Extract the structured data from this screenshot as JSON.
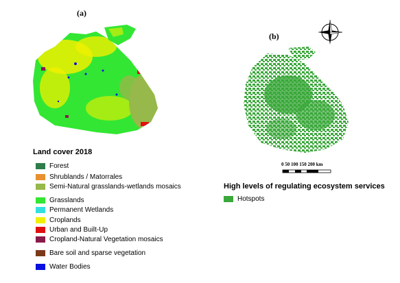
{
  "panel_a_label": "(a)",
  "panel_b_label": "(b)",
  "legend_a": {
    "title": "Land cover 2018",
    "items": [
      {
        "label": "Forest",
        "color": "#2e7d4a"
      },
      {
        "label": "Shrublands / Matorrales",
        "color": "#e8902e"
      },
      {
        "label": "Semi-Natural grasslands-wetlands mosaics",
        "color": "#97b84a"
      },
      {
        "label": "Grasslands",
        "color": "#33e633"
      },
      {
        "label": "Permanent Wetlands",
        "color": "#33e0e0"
      },
      {
        "label": "Croplands",
        "color": "#f0f000"
      },
      {
        "label": "Urban and Built-Up",
        "color": "#e01010"
      },
      {
        "label": "Cropland-Natural Vegetation mosaics",
        "color": "#8a1a4a"
      },
      {
        "label": "Bare soil and sparse vegetation",
        "color": "#7a3a1a"
      },
      {
        "label": "Water Bodies",
        "color": "#0a10e0"
      }
    ]
  },
  "legend_b": {
    "title": "High levels of regulating ecosystem services",
    "items": [
      {
        "label": "Hotspots",
        "color": "#3aa83a"
      }
    ]
  },
  "scale": {
    "labels": "0   50  100 150 200 km"
  },
  "compass": {
    "icon": "compass-rose-icon"
  }
}
